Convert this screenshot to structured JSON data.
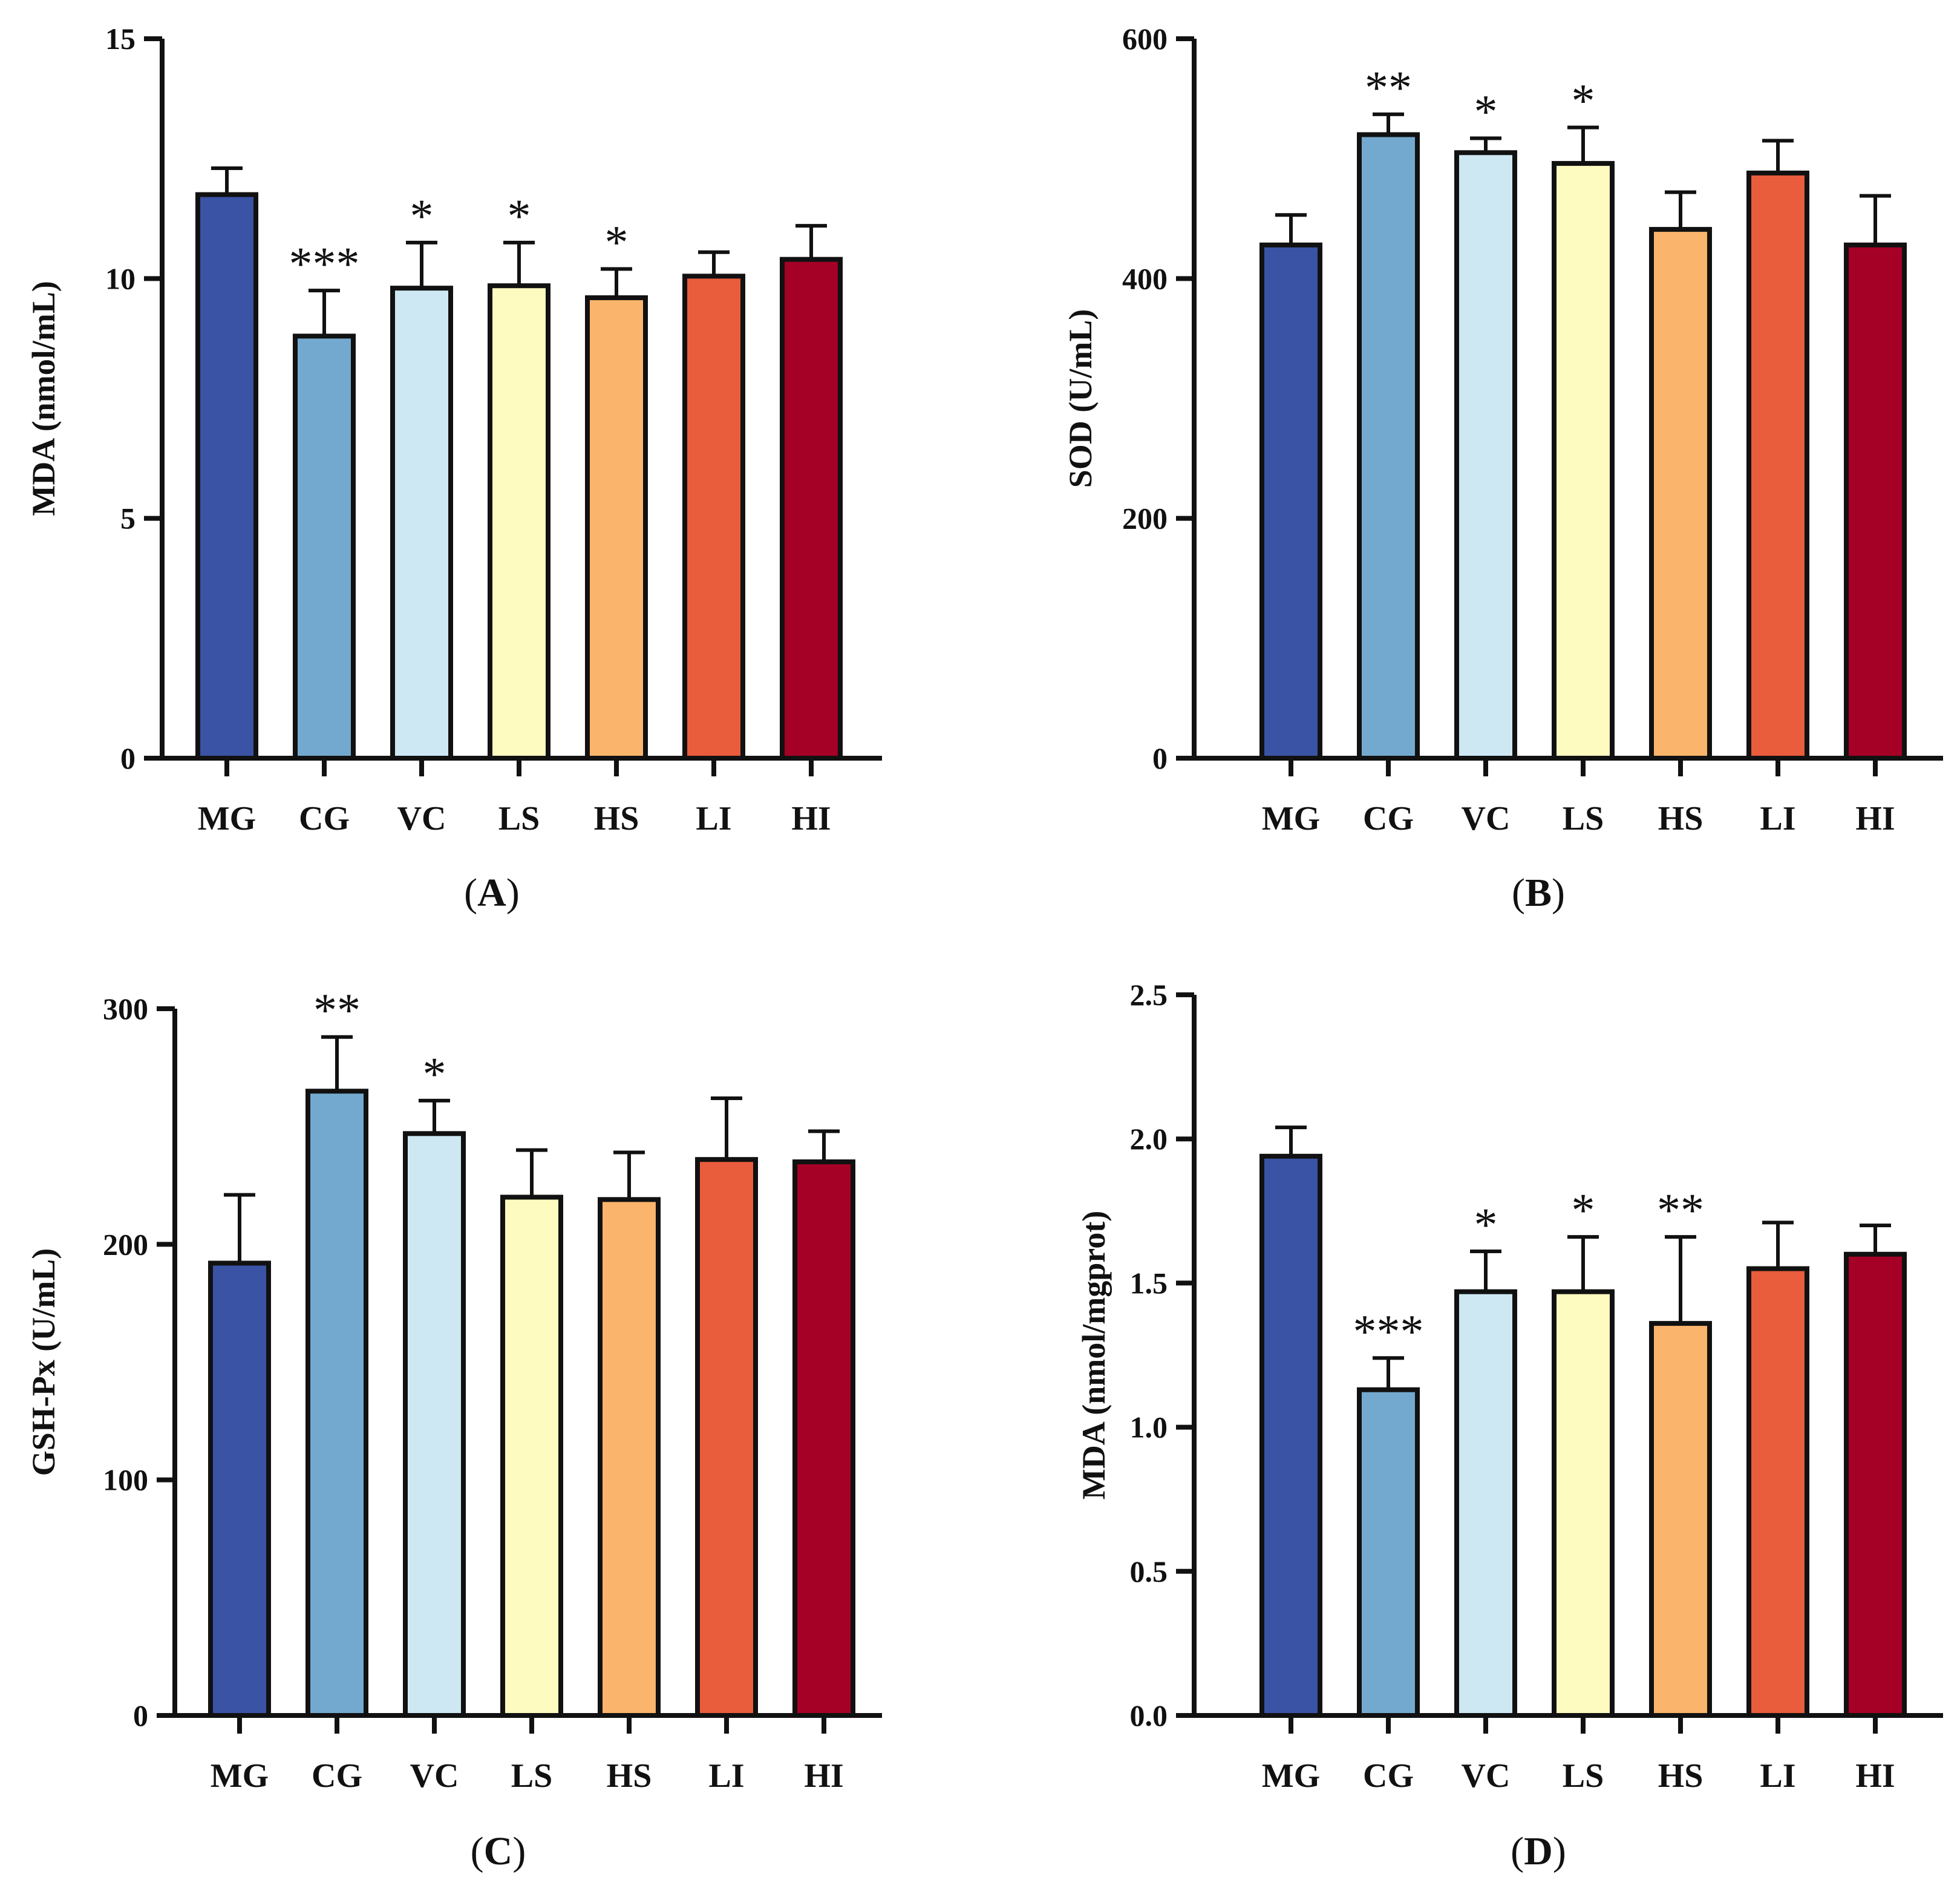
{
  "chart_data": [
    {
      "type": "bar",
      "panel_label": "(A)",
      "panel_letter": "A",
      "ylabel": "MDA (nmol/mL)",
      "ylim": [
        0,
        15
      ],
      "yticks": [
        0,
        5,
        10,
        15
      ],
      "ytick_labels": [
        "0",
        "5",
        "10",
        "15"
      ],
      "categories": [
        "MG",
        "CG",
        "VC",
        "LS",
        "HS",
        "LI",
        "HI"
      ],
      "values": [
        11.75,
        8.8,
        9.8,
        9.85,
        9.6,
        10.05,
        10.4
      ],
      "errors": [
        0.55,
        0.95,
        0.95,
        0.9,
        0.6,
        0.5,
        0.7
      ],
      "significance": [
        "",
        "***",
        "*",
        "*",
        "*",
        "",
        ""
      ]
    },
    {
      "type": "bar",
      "panel_label": "(B)",
      "panel_letter": "B",
      "ylabel": "SOD (U/mL)",
      "ylim": [
        0,
        600
      ],
      "yticks": [
        0,
        200,
        400,
        600
      ],
      "ytick_labels": [
        "0",
        "200",
        "400",
        "600"
      ],
      "categories": [
        "MG",
        "CG",
        "VC",
        "LS",
        "HS",
        "LI",
        "HI"
      ],
      "values": [
        428,
        520,
        505,
        496,
        441,
        488,
        428
      ],
      "errors": [
        25,
        17,
        12,
        30,
        31,
        27,
        41
      ],
      "significance": [
        "",
        "**",
        "*",
        "*",
        "",
        "",
        ""
      ]
    },
    {
      "type": "bar",
      "panel_label": "(C)",
      "panel_letter": "C",
      "ylabel": "GSH-Px (U/mL)",
      "ylim": [
        0,
        300
      ],
      "yticks": [
        0,
        100,
        200,
        300
      ],
      "ytick_labels": [
        "0",
        "100",
        "200",
        "300"
      ],
      "categories": [
        "MG",
        "CG",
        "VC",
        "LS",
        "HS",
        "LI",
        "HI"
      ],
      "values": [
        192,
        265,
        247,
        220,
        219,
        236,
        235
      ],
      "errors": [
        29,
        23,
        14,
        20,
        20,
        26,
        13
      ],
      "significance": [
        "",
        "**",
        "*",
        "",
        "",
        "",
        ""
      ]
    },
    {
      "type": "bar",
      "panel_label": "(D)",
      "panel_letter": "D",
      "ylabel": "MDA (nmol/mgprot)",
      "ylim": [
        0,
        2.5
      ],
      "yticks": [
        0,
        0.5,
        1.0,
        1.5,
        2.0,
        2.5
      ],
      "ytick_labels": [
        "0.0",
        "0.5",
        "1.0",
        "1.5",
        "2.0",
        "2.5"
      ],
      "categories": [
        "MG",
        "CG",
        "VC",
        "LS",
        "HS",
        "LI",
        "HI"
      ],
      "values": [
        1.94,
        1.13,
        1.47,
        1.47,
        1.36,
        1.55,
        1.6
      ],
      "errors": [
        0.1,
        0.11,
        0.14,
        0.19,
        0.3,
        0.16,
        0.1
      ],
      "significance": [
        "",
        "***",
        "*",
        "*",
        "**",
        "",
        ""
      ]
    }
  ],
  "bar_colors": [
    "#3a53a4",
    "#74a9cf",
    "#cde8f3",
    "#fdfbbf",
    "#fbb46c",
    "#e95c3c",
    "#a50026"
  ]
}
